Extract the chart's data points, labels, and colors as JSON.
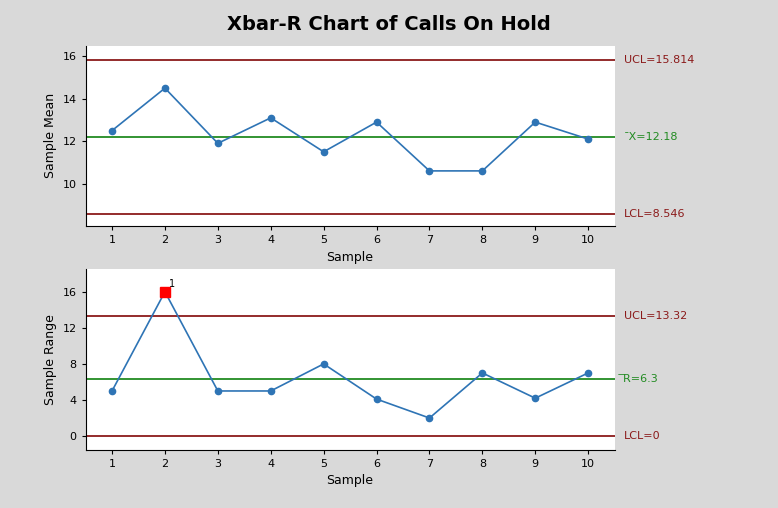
{
  "title": "Xbar-R Chart of Calls On Hold",
  "samples": [
    1,
    2,
    3,
    4,
    5,
    6,
    7,
    8,
    9,
    10
  ],
  "xbar_values": [
    12.5,
    14.5,
    11.9,
    13.1,
    11.5,
    12.9,
    10.6,
    10.6,
    12.9,
    12.1
  ],
  "range_values": [
    5.0,
    16.0,
    5.0,
    5.0,
    8.0,
    4.1,
    2.0,
    7.0,
    4.2,
    7.0
  ],
  "xbar_ucl": 15.814,
  "xbar_cl": 12.18,
  "xbar_lcl": 8.546,
  "range_ucl": 13.32,
  "range_cl": 6.3,
  "range_lcl": 0,
  "xbar_ucl_label": "UCL=15.814",
  "xbar_cl_label": "¯X=12.18",
  "xbar_lcl_label": "LCL=8.546",
  "range_ucl_label": "UCL=13.32",
  "range_cl_label": "̅R=6.3",
  "range_lcl_label": "LCL=0",
  "xbar_ylabel": "Sample Mean",
  "range_ylabel": "Sample Range",
  "xlabel": "Sample",
  "background_color": "#d9d9d9",
  "plot_bg_color": "#ffffff",
  "line_color": "#2E74B5",
  "ucl_lcl_color": "#8B1A1A",
  "cl_color": "#228B22",
  "marker_color": "#2E74B5",
  "out_of_control_color": "#FF0000",
  "out_of_control_idx": 1,
  "title_fontsize": 14,
  "label_fontsize": 9,
  "tick_fontsize": 8,
  "annotation_fontsize": 8,
  "xbar_ylim": [
    8.0,
    16.5
  ],
  "xbar_yticks": [
    10,
    12,
    14,
    16
  ],
  "range_ylim": [
    -1.5,
    18.5
  ],
  "range_yticks": [
    0,
    4,
    8,
    12,
    16
  ]
}
